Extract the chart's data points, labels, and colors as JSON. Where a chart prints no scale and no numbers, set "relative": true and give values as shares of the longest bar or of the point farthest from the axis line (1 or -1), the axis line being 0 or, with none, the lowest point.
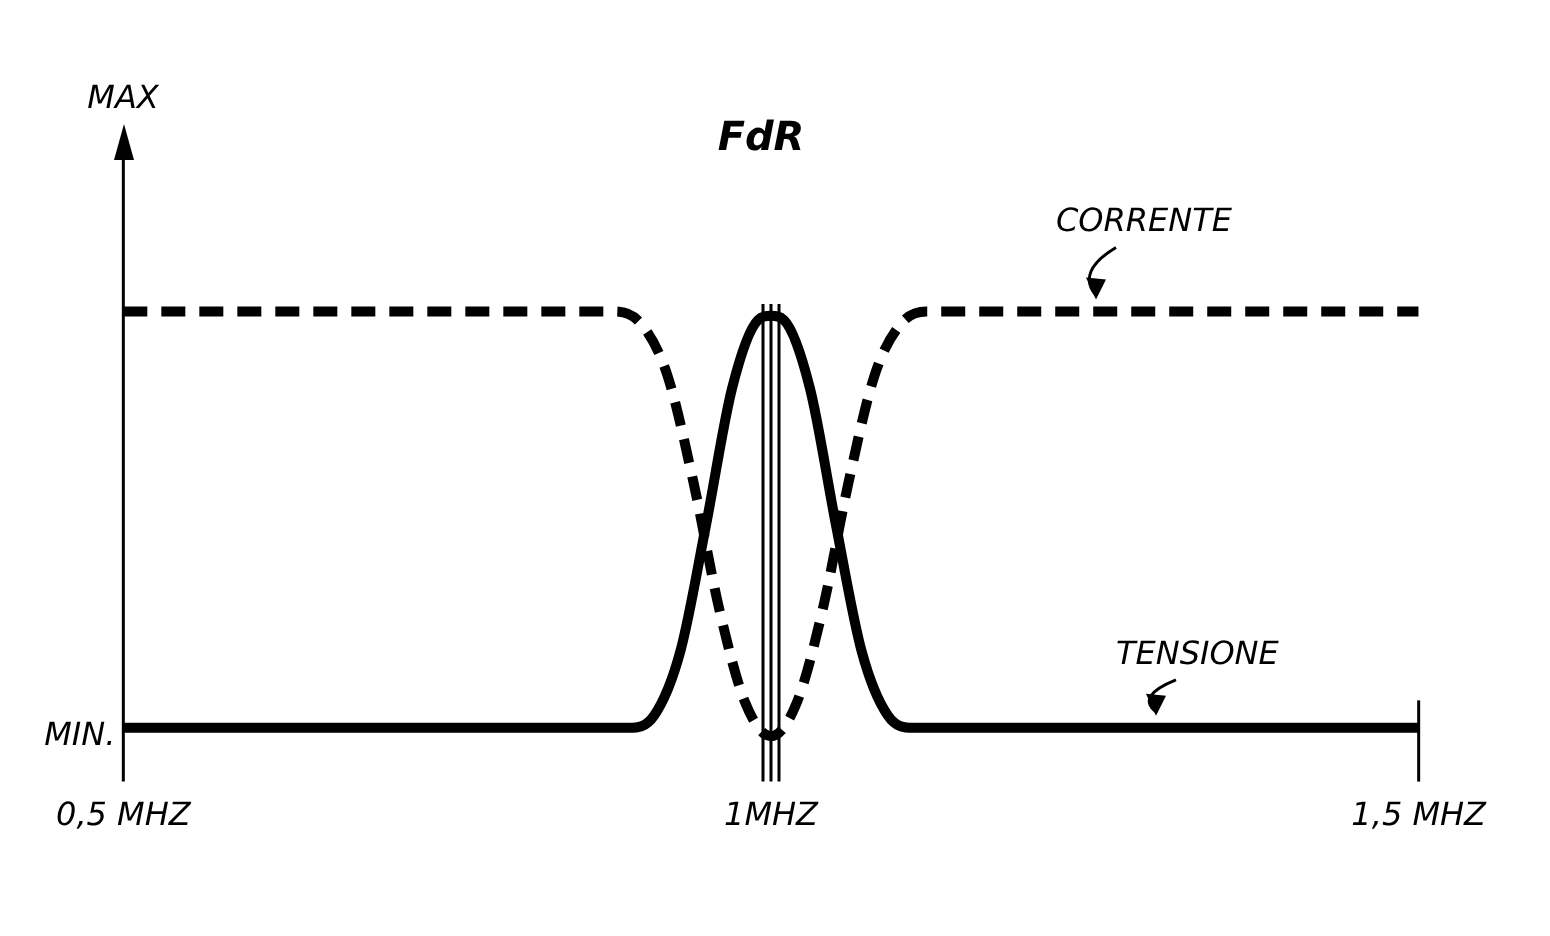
{
  "chart_data": {
    "type": "line",
    "title": "FdR",
    "relative": true,
    "legend": false,
    "grid": false,
    "marker": "none",
    "xlim": [
      0.5,
      1.5
    ],
    "xticks": [
      {
        "value": 0.5,
        "label": "0,5 MHZ"
      },
      {
        "value": 1,
        "label": "1MHZ"
      },
      {
        "value": 1.5,
        "label": "1,5 MHZ"
      }
    ],
    "annotations": [
      "MAX",
      "MIN."
    ],
    "ref_lines": [
      {
        "axis": "x",
        "value": 1,
        "color": "#000000"
      }
    ],
    "series": [
      {
        "name": "CORRENTE",
        "color": "#000000",
        "line_style": "dashed",
        "x": [
          0.5,
          0.88,
          0.9,
          0.92,
          0.94,
          0.96,
          0.98,
          1.0,
          1.02,
          1.04,
          1.06,
          1.08,
          1.1,
          1.12,
          1.5
        ],
        "values": [
          1,
          1,
          0.97,
          0.85,
          0.6,
          0.3,
          0.08,
          0,
          0.08,
          0.3,
          0.6,
          0.85,
          0.97,
          1,
          1
        ]
      },
      {
        "name": "TENSIONE",
        "color": "#000000",
        "line_style": "solid",
        "x": [
          0.5,
          0.89,
          0.91,
          0.93,
          0.95,
          0.97,
          0.99,
          1.0,
          1.01,
          1.03,
          1.05,
          1.07,
          1.09,
          1.11,
          1.5
        ],
        "values": [
          0.02,
          0.02,
          0.05,
          0.2,
          0.5,
          0.82,
          0.98,
          0.99,
          0.98,
          0.82,
          0.5,
          0.2,
          0.05,
          0.02,
          0.02
        ]
      }
    ]
  }
}
